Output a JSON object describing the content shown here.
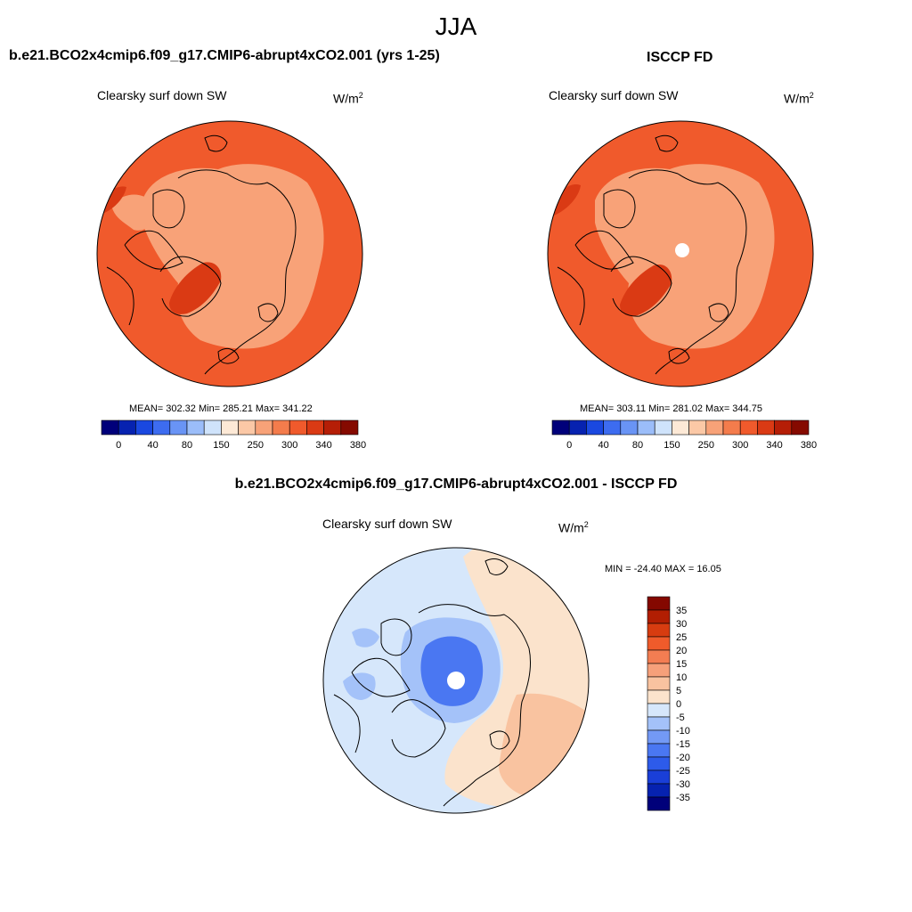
{
  "figure": {
    "season": "JJA",
    "colors": {
      "abs_palette": [
        "#00007a",
        "#0622b0",
        "#1a48e0",
        "#3d6cf0",
        "#6994f5",
        "#9bbdf9",
        "#cfe3fb",
        "#fde9d6",
        "#fbc8a6",
        "#f8a278",
        "#f47c4c",
        "#f05a2c",
        "#da3a14",
        "#b51e06",
        "#850a00"
      ],
      "diff_palette": [
        "#00007a",
        "#0622b0",
        "#1a3fd8",
        "#2d5bea",
        "#4a77f2",
        "#7399f5",
        "#a4c2f9",
        "#d6e7fb",
        "#fbe3cc",
        "#f9c3a0",
        "#f6a07a",
        "#f37d52",
        "#ef5b2b",
        "#d73c10",
        "#b21e02",
        "#840800"
      ],
      "land_outline": "#000000"
    }
  },
  "panels": {
    "model": {
      "title": "b.e21.BCO2x4cmip6.f09_g17.CMIP6-abrupt4xCO2.001 (yrs 1-25)",
      "variable": "Clearsky surf down SW",
      "units": "W/m",
      "units_sup": "2",
      "stats": "MEAN= 302.32  Min= 285.21  Max= 341.22"
    },
    "obs": {
      "title": "ISCCP FD",
      "variable": "Clearsky surf down SW",
      "units": "W/m",
      "units_sup": "2",
      "stats": "MEAN= 303.11  Min= 281.02  Max= 344.75"
    },
    "diff": {
      "title": "b.e21.BCO2x4cmip6.f09_g17.CMIP6-abrupt4xCO2.001 - ISCCP FD",
      "variable": "Clearsky surf down SW",
      "units": "W/m",
      "units_sup": "2",
      "stats": "MIN = -24.40 MAX =  16.05"
    }
  },
  "chart_data": [
    {
      "type": "heatmap",
      "projection": "polar stereographic, north pole",
      "title": "b.e21.BCO2x4cmip6.f09_g17.CMIP6-abrupt4xCO2.001 (yrs 1-25)",
      "variable": "Clearsky surf down SW",
      "units": "W/m2",
      "mean": 302.32,
      "min": 285.21,
      "max": 341.22,
      "colorbar_ticks": [
        "0",
        "40",
        "80",
        "150",
        "250",
        "300",
        "340",
        "380"
      ],
      "field_levels": [
        {
          "region": "outer ring (south of ~60N)",
          "value_range": [
            300,
            340
          ]
        },
        {
          "region": "central Arctic",
          "value_range": [
            250,
            300
          ]
        },
        {
          "region": "Greenland ice sheet",
          "value_range": [
            340,
            380
          ]
        }
      ]
    },
    {
      "type": "heatmap",
      "projection": "polar stereographic, north pole",
      "title": "ISCCP FD",
      "variable": "Clearsky surf down SW",
      "units": "W/m2",
      "mean": 303.11,
      "min": 281.02,
      "max": 344.75,
      "colorbar_ticks": [
        "0",
        "40",
        "80",
        "150",
        "250",
        "300",
        "340",
        "380"
      ],
      "field_levels": [
        {
          "region": "outer ring (south of ~60N)",
          "value_range": [
            300,
            340
          ]
        },
        {
          "region": "central Arctic",
          "value_range": [
            250,
            300
          ]
        },
        {
          "region": "Greenland ice sheet",
          "value_range": [
            340,
            380
          ]
        },
        {
          "region": "pole",
          "value_range": null
        }
      ]
    },
    {
      "type": "heatmap",
      "projection": "polar stereographic, north pole",
      "title": "b.e21.BCO2x4cmip6.f09_g17.CMIP6-abrupt4xCO2.001 - ISCCP FD",
      "variable": "Clearsky surf down SW",
      "units": "W/m2",
      "min": -24.4,
      "max": 16.05,
      "colorbar_ticks": [
        "35",
        "30",
        "25",
        "20",
        "15",
        "10",
        "5",
        "0",
        "-5",
        "-10",
        "-15",
        "-20",
        "-25",
        "-30",
        "-35"
      ],
      "field_levels": [
        {
          "region": "central Arctic",
          "value_range": [
            -25,
            -10
          ]
        },
        {
          "region": "North America / Atlantic",
          "value_range": [
            -10,
            0
          ]
        },
        {
          "region": "Eurasia",
          "value_range": [
            5,
            15
          ]
        },
        {
          "region": "pole",
          "value_range": null
        }
      ]
    }
  ]
}
